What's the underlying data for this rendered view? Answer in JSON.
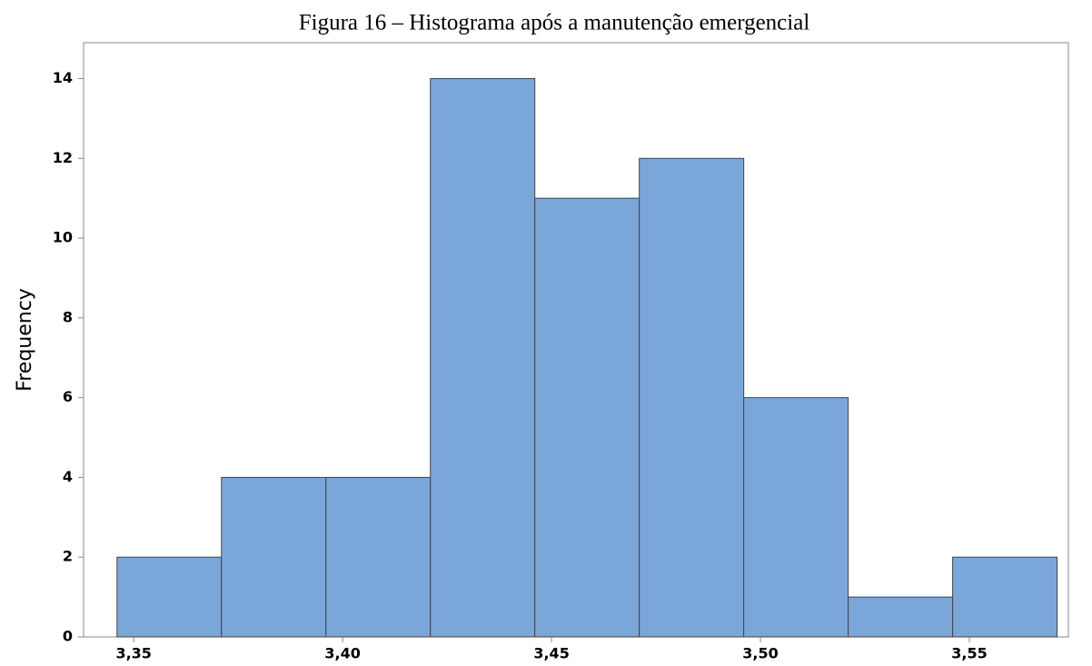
{
  "chart_data": {
    "type": "histogram",
    "title": "Figura 16 – Histograma após a manutenção emergencial",
    "y_label": "Frequency",
    "bins": [
      3.346,
      3.371,
      3.396,
      3.421,
      3.446,
      3.471,
      3.496,
      3.521,
      3.546,
      3.571
    ],
    "values": [
      2,
      4,
      4,
      14,
      11,
      12,
      6,
      1,
      2
    ],
    "color": "#7ba6d9",
    "xlim": [
      3.338,
      3.5737
    ],
    "xticks": [
      {
        "value": 3.35,
        "label": "3,35"
      },
      {
        "value": 3.4,
        "label": "3,40"
      },
      {
        "value": 3.45,
        "label": "3,45"
      },
      {
        "value": 3.5,
        "label": "3,50"
      },
      {
        "value": 3.55,
        "label": "3,55"
      }
    ],
    "ylim": [
      0,
      14.9
    ],
    "yticks": [
      0,
      2,
      4,
      6,
      8,
      10,
      12,
      14
    ]
  }
}
